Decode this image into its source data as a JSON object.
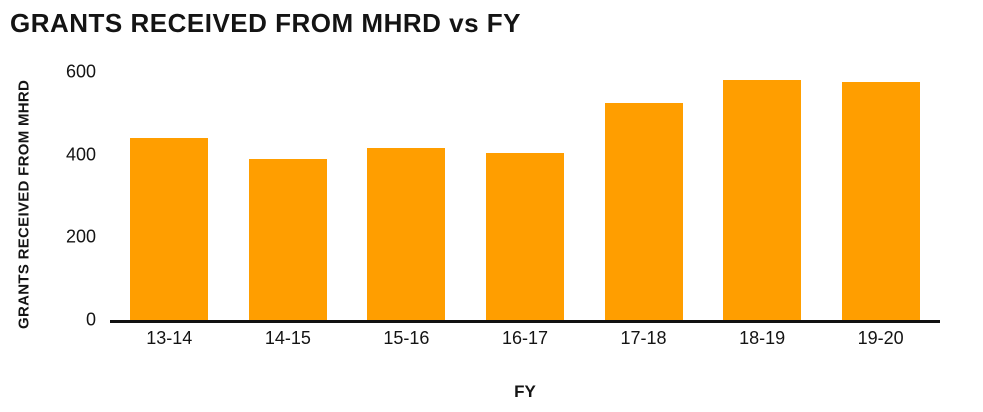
{
  "chart_data": {
    "type": "bar",
    "title": "GRANTS RECEIVED FROM MHRD vs FY",
    "xlabel": "FY",
    "ylabel": "GRANTS RECEIVED FROM MHRD",
    "categories": [
      "13-14",
      "14-15",
      "15-16",
      "16-17",
      "17-18",
      "18-19",
      "19-20"
    ],
    "values": [
      440,
      390,
      415,
      405,
      525,
      580,
      575
    ],
    "yticks": [
      0,
      200,
      400,
      600
    ],
    "ylim": [
      0,
      600
    ],
    "bar_color": "#FF9E00",
    "axis_color": "#111111",
    "grid": "off",
    "legend": "none"
  }
}
